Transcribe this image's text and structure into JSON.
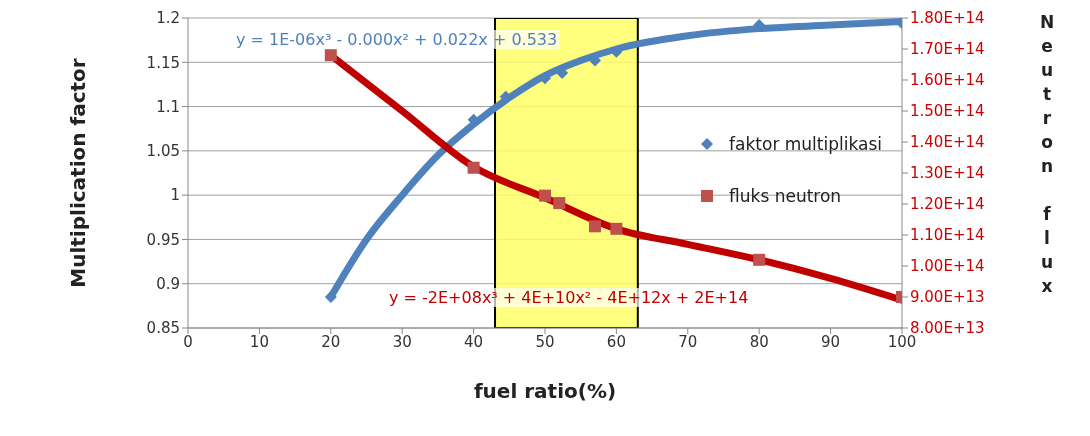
{
  "chart_data": {
    "type": "scatter",
    "xlabel": "fuel ratio(%)",
    "ylabel": "Multiplication factor",
    "y2label": "Neutron flux",
    "xlim": [
      0,
      100
    ],
    "xticks": [
      0,
      10,
      20,
      30,
      40,
      50,
      60,
      70,
      80,
      90,
      100
    ],
    "ylim": [
      0.85,
      1.2
    ],
    "yticks": [
      0.85,
      0.9,
      0.95,
      1,
      1.05,
      1.1,
      1.15,
      1.2
    ],
    "y2lim": [
      80000000000000.0,
      180000000000000.0
    ],
    "y2ticks": [
      {
        "value": 80000000000000.0,
        "label": "8.00E+13"
      },
      {
        "value": 90000000000000.0,
        "label": "9.00E+13"
      },
      {
        "value": 100000000000000.0,
        "label": "1.00E+14"
      },
      {
        "value": 110000000000000.0,
        "label": "1.10E+14"
      },
      {
        "value": 120000000000000.0,
        "label": "1.20E+14"
      },
      {
        "value": 130000000000000.0,
        "label": "1.30E+14"
      },
      {
        "value": 140000000000000.0,
        "label": "1.40E+14"
      },
      {
        "value": 150000000000000.0,
        "label": "1.50E+14"
      },
      {
        "value": 160000000000000.0,
        "label": "1.60E+14"
      },
      {
        "value": 170000000000000.0,
        "label": "1.70E+14"
      },
      {
        "value": 180000000000000.0,
        "label": "1.80E+14"
      }
    ],
    "grid": "y",
    "legend": "right",
    "bands": [
      {
        "axis": "x",
        "from": 43,
        "to": 63,
        "color": "#ffff66"
      }
    ],
    "annotations": [
      "y = 1E-06x³ - 0.000x² + 0.022x + 0.533",
      "y = -2E+08x³ + 4E+10x² - 4E+12x + 2E+14"
    ],
    "series": [
      {
        "type": "line",
        "color": "#4f81bd",
        "x": [
          20,
          25,
          30,
          35,
          40,
          45,
          50,
          55,
          60,
          70,
          80,
          90,
          100
        ],
        "values": [
          0.885,
          0.95,
          1.0,
          1.045,
          1.08,
          1.11,
          1.135,
          1.152,
          1.165,
          1.18,
          1.188,
          1.192,
          1.196
        ]
      },
      {
        "type": "line",
        "axis": "y2",
        "color": "#c00000",
        "x": [
          20,
          30,
          40,
          50,
          60,
          70,
          80,
          90,
          100
        ],
        "values": [
          168000000000000.0,
          150000000000000.0,
          132000000000000.0,
          122000000000000.0,
          112000000000000.0,
          107000000000000.0,
          102000000000000.0,
          96000000000000.0,
          89000000000000.0
        ]
      },
      {
        "name": "faktor multiplikasi",
        "marker": "diamond",
        "color": "#4f81bd",
        "x": [
          20,
          40,
          44.5,
          50,
          52.4,
          57,
          60,
          80,
          100
        ],
        "values": [
          0.885,
          1.085,
          1.111,
          1.132,
          1.138,
          1.152,
          1.162,
          1.192,
          1.194
        ]
      },
      {
        "name": "fluks neutron",
        "marker": "square",
        "axis": "y2",
        "color": "#c0504d",
        "x": [
          20,
          40,
          50,
          52,
          57,
          60,
          80,
          100
        ],
        "values": [
          168000000000000.0,
          131700000000000.0,
          122700000000000.0,
          120300000000000.0,
          112800000000000.0,
          112000000000000.0,
          102000000000000.0,
          90000000000000.0
        ]
      }
    ]
  }
}
